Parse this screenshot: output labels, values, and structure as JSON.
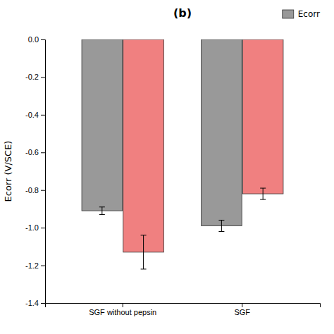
{
  "chart_data": {
    "type": "bar",
    "title": "(b)",
    "ylabel": "Ecorr (V/SCE)",
    "categories": [
      "SGF without pepsin",
      "SGF"
    ],
    "series": [
      {
        "name": "Ecorr",
        "color": "#999999",
        "values": [
          -0.91,
          -0.99
        ],
        "errors": [
          0.02,
          0.03
        ]
      },
      {
        "color": "#f08080",
        "values": [
          -1.13,
          -0.82
        ],
        "errors": [
          0.09,
          0.03
        ]
      }
    ],
    "ylim": [
      -1.4,
      0.0
    ],
    "yticks": [
      {
        "value": 0.0,
        "label": "0.0"
      },
      -0.2,
      -0.4,
      -0.6,
      -0.8,
      {
        "value": -1.0,
        "label": "-1.0"
      },
      -1.2,
      -1.4
    ],
    "grid": false,
    "legend": "upper right"
  }
}
